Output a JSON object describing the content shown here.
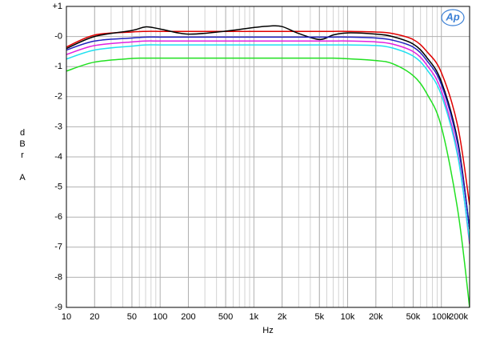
{
  "chart_data": {
    "type": "line",
    "xlabel": "Hz",
    "ylabel": "dBr A",
    "logo": "Ap",
    "xscale": "log",
    "grid": true,
    "minor_grid": true,
    "xlim": [
      10,
      200000
    ],
    "ylim": [
      -9,
      1
    ],
    "xticks": [
      10,
      20,
      50,
      100,
      200,
      500,
      {
        "value": 1000,
        "label": "1k"
      },
      {
        "value": 2000,
        "label": "2k"
      },
      {
        "value": 5000,
        "label": "5k"
      },
      {
        "value": 10000,
        "label": "10k"
      },
      {
        "value": 20000,
        "label": "20k"
      },
      {
        "value": 50000,
        "label": "50k"
      },
      {
        "value": 100000,
        "label": "100k"
      },
      {
        "value": 200000,
        "label": "200k"
      }
    ],
    "yticks": [
      {
        "value": 1,
        "label": "+1"
      },
      {
        "value": 0,
        "label": "-0"
      },
      -1,
      -2,
      -3,
      -4,
      -5,
      -6,
      -7,
      -8,
      -9
    ],
    "x": [
      10,
      20,
      50,
      70,
      100,
      200,
      500,
      1000,
      1500,
      2000,
      3000,
      5000,
      7000,
      10000,
      20000,
      30000,
      50000,
      70000,
      100000,
      150000,
      200000
    ],
    "series": [
      {
        "color": "#e00000",
        "values": [
          -0.35,
          0.05,
          0.15,
          0.17,
          0.17,
          0.17,
          0.17,
          0.17,
          0.17,
          0.17,
          0.17,
          0.17,
          0.17,
          0.17,
          0.15,
          0.1,
          -0.1,
          -0.5,
          -1.2,
          -3.0,
          -5.6
        ]
      },
      {
        "color": "#000000",
        "values": [
          -0.4,
          0.0,
          0.2,
          0.32,
          0.25,
          0.08,
          0.18,
          0.3,
          0.35,
          0.33,
          0.1,
          -0.1,
          0.05,
          0.12,
          0.08,
          0.0,
          -0.25,
          -0.7,
          -1.5,
          -3.5,
          -6.4
        ]
      },
      {
        "color": "#2020c0",
        "values": [
          -0.45,
          -0.15,
          -0.05,
          -0.02,
          -0.02,
          -0.02,
          -0.02,
          -0.02,
          -0.02,
          -0.02,
          -0.02,
          -0.02,
          -0.02,
          -0.02,
          -0.05,
          -0.12,
          -0.35,
          -0.8,
          -1.6,
          -3.6,
          -6.4
        ]
      },
      {
        "color": "#e020e0",
        "values": [
          -0.6,
          -0.3,
          -0.18,
          -0.15,
          -0.15,
          -0.15,
          -0.15,
          -0.15,
          -0.15,
          -0.15,
          -0.15,
          -0.15,
          -0.15,
          -0.15,
          -0.18,
          -0.25,
          -0.5,
          -0.95,
          -1.8,
          -3.9,
          -6.9
        ]
      },
      {
        "color": "#20e0f0",
        "values": [
          -0.75,
          -0.45,
          -0.32,
          -0.28,
          -0.28,
          -0.28,
          -0.28,
          -0.28,
          -0.28,
          -0.28,
          -0.28,
          -0.28,
          -0.28,
          -0.28,
          -0.3,
          -0.38,
          -0.65,
          -1.1,
          -1.95,
          -4.0,
          -6.8
        ]
      },
      {
        "color": "#20e020",
        "values": [
          -1.15,
          -0.85,
          -0.73,
          -0.72,
          -0.72,
          -0.72,
          -0.72,
          -0.72,
          -0.72,
          -0.72,
          -0.72,
          -0.72,
          -0.72,
          -0.74,
          -0.8,
          -0.9,
          -1.3,
          -1.9,
          -3.0,
          -5.8,
          -9.0
        ]
      }
    ]
  }
}
